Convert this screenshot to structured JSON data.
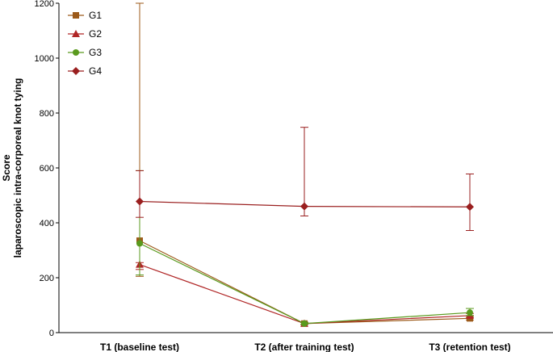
{
  "chart_data": {
    "type": "line",
    "categories": [
      "T1 (baseline test)",
      "T2 (after training test)",
      "T3 (retention test)"
    ],
    "ylabel_lines": [
      "Score",
      "laparoscopic intra-corporeal knot tying"
    ],
    "ylim": [
      0,
      1200
    ],
    "yticks": [
      0,
      200,
      400,
      600,
      800,
      1000,
      1200
    ],
    "grid": false,
    "legend_position": "top-left",
    "series": [
      {
        "name": "G1",
        "marker": "square",
        "color": "#9c5a1a",
        "values": [
          335,
          33,
          52
        ],
        "error_low": [
          205,
          30,
          46
        ],
        "error_high": [
          1200,
          38,
          60
        ]
      },
      {
        "name": "G2",
        "marker": "triangle",
        "color": "#b02626",
        "values": [
          248,
          33,
          62
        ],
        "error_low": [
          230,
          30,
          55
        ],
        "error_high": [
          255,
          37,
          70
        ]
      },
      {
        "name": "G3",
        "marker": "circle",
        "color": "#5a9a1e",
        "values": [
          325,
          33,
          73
        ],
        "error_low": [
          210,
          30,
          62
        ],
        "error_high": [
          590,
          38,
          88
        ]
      },
      {
        "name": "G4",
        "marker": "diamond",
        "color": "#9a1f1f",
        "values": [
          478,
          460,
          458
        ],
        "error_low": [
          420,
          425,
          372
        ],
        "error_high": [
          590,
          748,
          578
        ]
      }
    ]
  }
}
